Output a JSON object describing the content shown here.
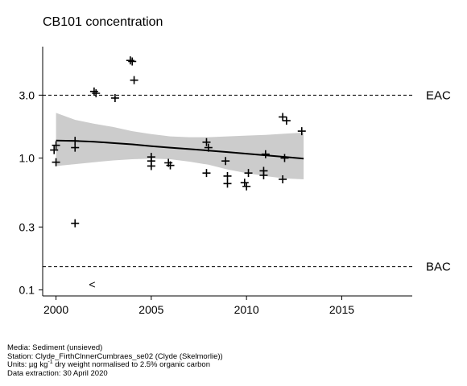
{
  "chart_data": {
    "type": "scatter",
    "title": "CB101 concentration",
    "xlabel": "",
    "ylabel": "",
    "y_scale": "log",
    "xlim": [
      1999.3,
      2018.7
    ],
    "ylim": [
      0.09,
      7.0
    ],
    "x_ticks": [
      2000,
      2005,
      2010,
      2015
    ],
    "x_tick_labels": [
      "2000",
      "2005",
      "2010",
      "2015"
    ],
    "y_ticks": [
      0.1,
      0.3,
      1.0,
      3.0
    ],
    "y_tick_labels": [
      "0.1",
      "0.3",
      "1.0",
      "3.0"
    ],
    "grid": false,
    "legend": "none",
    "reference_lines": [
      {
        "name": "EAC",
        "value": 3.0
      },
      {
        "name": "BAC",
        "value": 0.15
      }
    ],
    "points": [
      {
        "x": 1999.9,
        "y": 1.15
      },
      {
        "x": 2000.0,
        "y": 1.25
      },
      {
        "x": 2000.0,
        "y": 0.93
      },
      {
        "x": 2001.0,
        "y": 1.35
      },
      {
        "x": 2001.0,
        "y": 1.2
      },
      {
        "x": 2001.0,
        "y": 0.32
      },
      {
        "x": 2002.0,
        "y": 3.2
      },
      {
        "x": 2002.1,
        "y": 3.1
      },
      {
        "x": 2003.1,
        "y": 2.85
      },
      {
        "x": 2003.9,
        "y": 5.5
      },
      {
        "x": 2004.0,
        "y": 5.4
      },
      {
        "x": 2004.1,
        "y": 3.9
      },
      {
        "x": 2005.0,
        "y": 1.02
      },
      {
        "x": 2005.0,
        "y": 0.95
      },
      {
        "x": 2005.0,
        "y": 0.87
      },
      {
        "x": 2005.9,
        "y": 0.92
      },
      {
        "x": 2006.0,
        "y": 0.88
      },
      {
        "x": 2007.9,
        "y": 1.32
      },
      {
        "x": 2008.0,
        "y": 1.2
      },
      {
        "x": 2007.9,
        "y": 0.77
      },
      {
        "x": 2008.9,
        "y": 0.95
      },
      {
        "x": 2009.0,
        "y": 0.73
      },
      {
        "x": 2009.0,
        "y": 0.64
      },
      {
        "x": 2009.9,
        "y": 0.65
      },
      {
        "x": 2010.0,
        "y": 0.61
      },
      {
        "x": 2010.1,
        "y": 0.77
      },
      {
        "x": 2010.9,
        "y": 0.8
      },
      {
        "x": 2010.9,
        "y": 0.74
      },
      {
        "x": 2011.0,
        "y": 1.07
      },
      {
        "x": 2011.9,
        "y": 2.05
      },
      {
        "x": 2012.1,
        "y": 1.92
      },
      {
        "x": 2012.0,
        "y": 1.0
      },
      {
        "x": 2011.9,
        "y": 0.69
      },
      {
        "x": 2012.9,
        "y": 1.6
      }
    ],
    "below_detection_points": [
      {
        "x": 2001.9,
        "y": 0.11,
        "marker": "<"
      }
    ],
    "trend": {
      "x": [
        2000,
        2001,
        2002,
        2003,
        2004,
        2005,
        2006,
        2007,
        2008,
        2009,
        2010,
        2011,
        2012,
        2013
      ],
      "y": [
        1.36,
        1.35,
        1.33,
        1.3,
        1.27,
        1.23,
        1.2,
        1.17,
        1.14,
        1.11,
        1.08,
        1.05,
        1.02,
        0.99
      ],
      "lower": [
        0.87,
        0.9,
        0.93,
        0.96,
        0.98,
        0.99,
        0.98,
        0.94,
        0.89,
        0.82,
        0.77,
        0.73,
        0.7,
        0.69
      ],
      "upper": [
        2.2,
        1.95,
        1.82,
        1.72,
        1.6,
        1.52,
        1.46,
        1.44,
        1.44,
        1.46,
        1.48,
        1.5,
        1.53,
        1.56
      ]
    }
  },
  "footer": {
    "media": "Media: Sediment (unsieved)",
    "station": "Station: Clyde_FirthClnnerCumbraes_se02 (Clyde (Skelmorlie))",
    "units_prefix": "Units:  µg kg",
    "units_sup": "-1",
    "units_suffix": " dry weight normalised to 2.5% organic carbon",
    "extraction": "Data extraction: 30 April 2020"
  }
}
